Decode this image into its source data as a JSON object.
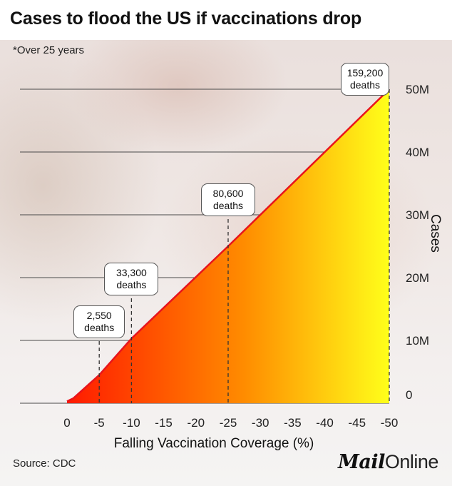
{
  "header": {
    "title": "Cases to flood the US if vaccinations drop",
    "subtitle": "*Over 25 years"
  },
  "footer": {
    "source": "Source: CDC",
    "brand_bold": "Mail",
    "brand_light": "Online"
  },
  "colors": {
    "line": "#e8141c",
    "fill_start": "#ff1a00",
    "fill_mid": "#ff8c00",
    "fill_end": "#ffff1a",
    "marker": "#333333"
  },
  "chart_data": {
    "type": "area",
    "title": "Cases to flood the US if vaccinations drop",
    "subtitle": "*Over 25 years",
    "xlabel": "Falling Vaccination Coverage (%)",
    "ylabel": "Cases",
    "x": [
      0,
      -5,
      -10,
      -15,
      -20,
      -25,
      -30,
      -35,
      -40,
      -45,
      -50
    ],
    "x_tick_labels": [
      "0",
      "-5",
      "-10",
      "-15",
      "-20",
      "-25",
      "-30",
      "-35",
      "-40",
      "-45",
      "-50"
    ],
    "y_ticks": [
      0,
      10,
      20,
      30,
      40,
      50
    ],
    "y_tick_labels": [
      "0",
      "10M",
      "20M",
      "30M",
      "40M",
      "50M"
    ],
    "y_unit": "million cases",
    "ylim": [
      0,
      50
    ],
    "series": [
      {
        "x": [
          0,
          -1,
          -5,
          -10,
          -25,
          -50
        ],
        "values": [
          0.3,
          0.8,
          4.5,
          10.3,
          25.0,
          50.0
        ]
      }
    ],
    "annotations": [
      {
        "x": -5,
        "value": "2,550",
        "label": "deaths"
      },
      {
        "x": -10,
        "value": "33,300",
        "label": "deaths"
      },
      {
        "x": -25,
        "value": "80,600",
        "label": "deaths"
      },
      {
        "x": -50,
        "value": "159,200",
        "label": "deaths"
      }
    ],
    "grid": "horizontal",
    "y_axis_position": "right"
  }
}
